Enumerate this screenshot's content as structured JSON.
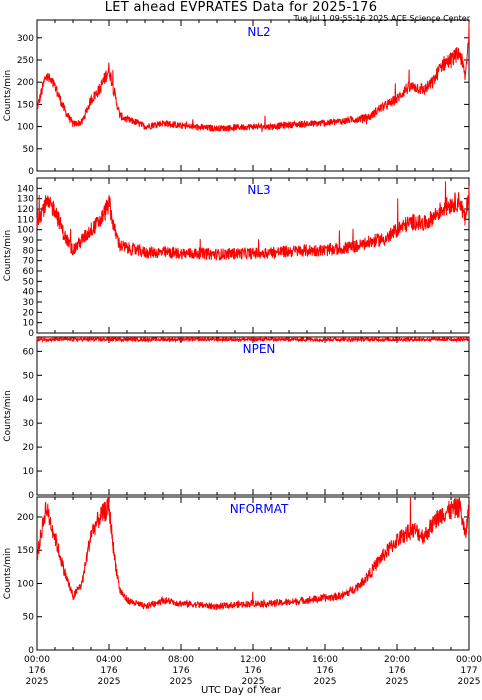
{
  "title": "LET ahead EVPRATES Data for 2025-176",
  "subtitle": "Tue Jul  1 09:55:16 2025 ACE Science Center",
  "x_axis_title": "UTC Day of Year",
  "colors": {
    "line": "#ff0000",
    "panel_label": "#0000ff",
    "axis": "#000000"
  },
  "chart_data": [
    {
      "type": "line",
      "title": "NL2",
      "ylabel": "Counts/min",
      "ylim": [
        0,
        340
      ],
      "yticks": [
        0,
        50,
        100,
        150,
        200,
        250,
        300
      ],
      "xlim": [
        0,
        24
      ],
      "series": [
        {
          "x": [
            0,
            0.5,
            1,
            1.5,
            2,
            2.5,
            3,
            3.5,
            4,
            4.3,
            4.6,
            5,
            5.5,
            6,
            7,
            8,
            9,
            10,
            11,
            12,
            13,
            14,
            15,
            16,
            17,
            17.5,
            18,
            18.5,
            19,
            19.5,
            20,
            20.5,
            21,
            21.5,
            22,
            22.5,
            23,
            23.5,
            23.8,
            24
          ],
          "y": [
            140,
            215,
            190,
            140,
            105,
            110,
            160,
            185,
            230,
            175,
            125,
            115,
            110,
            100,
            108,
            102,
            98,
            96,
            98,
            100,
            100,
            104,
            106,
            108,
            112,
            116,
            118,
            122,
            140,
            150,
            162,
            185,
            190,
            182,
            200,
            240,
            250,
            265,
            210,
            320
          ]
        }
      ]
    },
    {
      "type": "line",
      "title": "NL3",
      "ylabel": "Counts/min",
      "ylim": [
        0,
        150
      ],
      "yticks": [
        0,
        10,
        20,
        30,
        40,
        50,
        60,
        70,
        80,
        90,
        100,
        110,
        120,
        130,
        140
      ],
      "xlim": [
        0,
        24
      ],
      "series": [
        {
          "x": [
            0,
            0.5,
            1,
            1.5,
            2,
            2.5,
            3,
            3.5,
            4,
            4.3,
            4.6,
            5,
            5.5,
            6,
            7,
            8,
            9,
            10,
            11,
            12,
            13,
            14,
            15,
            16,
            17,
            17.5,
            18,
            18.5,
            19,
            19.5,
            20,
            20.5,
            21,
            21.5,
            22,
            22.5,
            23,
            23.5,
            23.8,
            24
          ],
          "y": [
            110,
            125,
            120,
            95,
            80,
            90,
            100,
            108,
            125,
            100,
            85,
            82,
            80,
            78,
            78,
            77,
            77,
            76,
            77,
            77,
            78,
            79,
            80,
            80,
            82,
            83,
            85,
            88,
            90,
            92,
            100,
            105,
            108,
            105,
            112,
            120,
            125,
            128,
            108,
            140
          ]
        }
      ]
    },
    {
      "type": "line",
      "title": "NPEN",
      "ylabel": "Counts/min",
      "ylim": [
        0,
        66
      ],
      "yticks": [
        0,
        10,
        20,
        30,
        40,
        50,
        60
      ],
      "xlim": [
        0,
        24
      ],
      "series": [
        {
          "x": [
            0,
            2,
            4,
            6,
            8,
            10,
            12,
            14,
            16,
            18,
            20,
            22,
            24
          ],
          "y": [
            65,
            65,
            65,
            65,
            65,
            65,
            65,
            65,
            65,
            65,
            65,
            65,
            65
          ]
        }
      ]
    },
    {
      "type": "line",
      "title": "NFORMAT",
      "ylabel": "Counts/min",
      "ylim": [
        0,
        230
      ],
      "yticks": [
        0,
        50,
        100,
        150,
        200
      ],
      "xlim": [
        0,
        24
      ],
      "xticks": [
        {
          "x": 0,
          "time": "00:00",
          "doy": "176",
          "year": "2025"
        },
        {
          "x": 4,
          "time": "04:00",
          "doy": "176",
          "year": "2025"
        },
        {
          "x": 8,
          "time": "08:00",
          "doy": "176",
          "year": "2025"
        },
        {
          "x": 12,
          "time": "12:00",
          "doy": "176",
          "year": "2025"
        },
        {
          "x": 16,
          "time": "16:00",
          "doy": "176",
          "year": "2025"
        },
        {
          "x": 20,
          "time": "20:00",
          "doy": "176",
          "year": "2025"
        },
        {
          "x": 24,
          "time": "00:00",
          "doy": "177",
          "year": "2025"
        }
      ],
      "series": [
        {
          "x": [
            0,
            0.5,
            1,
            1.5,
            2,
            2.5,
            3,
            3.5,
            4,
            4.3,
            4.6,
            5,
            5.5,
            6,
            7,
            8,
            9,
            10,
            11,
            12,
            13,
            14,
            15,
            16,
            17,
            17.5,
            18,
            18.5,
            19,
            19.5,
            20,
            20.5,
            21,
            21.5,
            22,
            22.5,
            23,
            23.5,
            23.8,
            24
          ],
          "y": [
            140,
            215,
            170,
            120,
            80,
            100,
            175,
            200,
            215,
            140,
            90,
            75,
            70,
            65,
            75,
            70,
            68,
            65,
            68,
            70,
            70,
            72,
            75,
            78,
            82,
            90,
            100,
            115,
            135,
            150,
            165,
            175,
            180,
            170,
            190,
            205,
            210,
            215,
            170,
            215
          ]
        }
      ]
    }
  ]
}
